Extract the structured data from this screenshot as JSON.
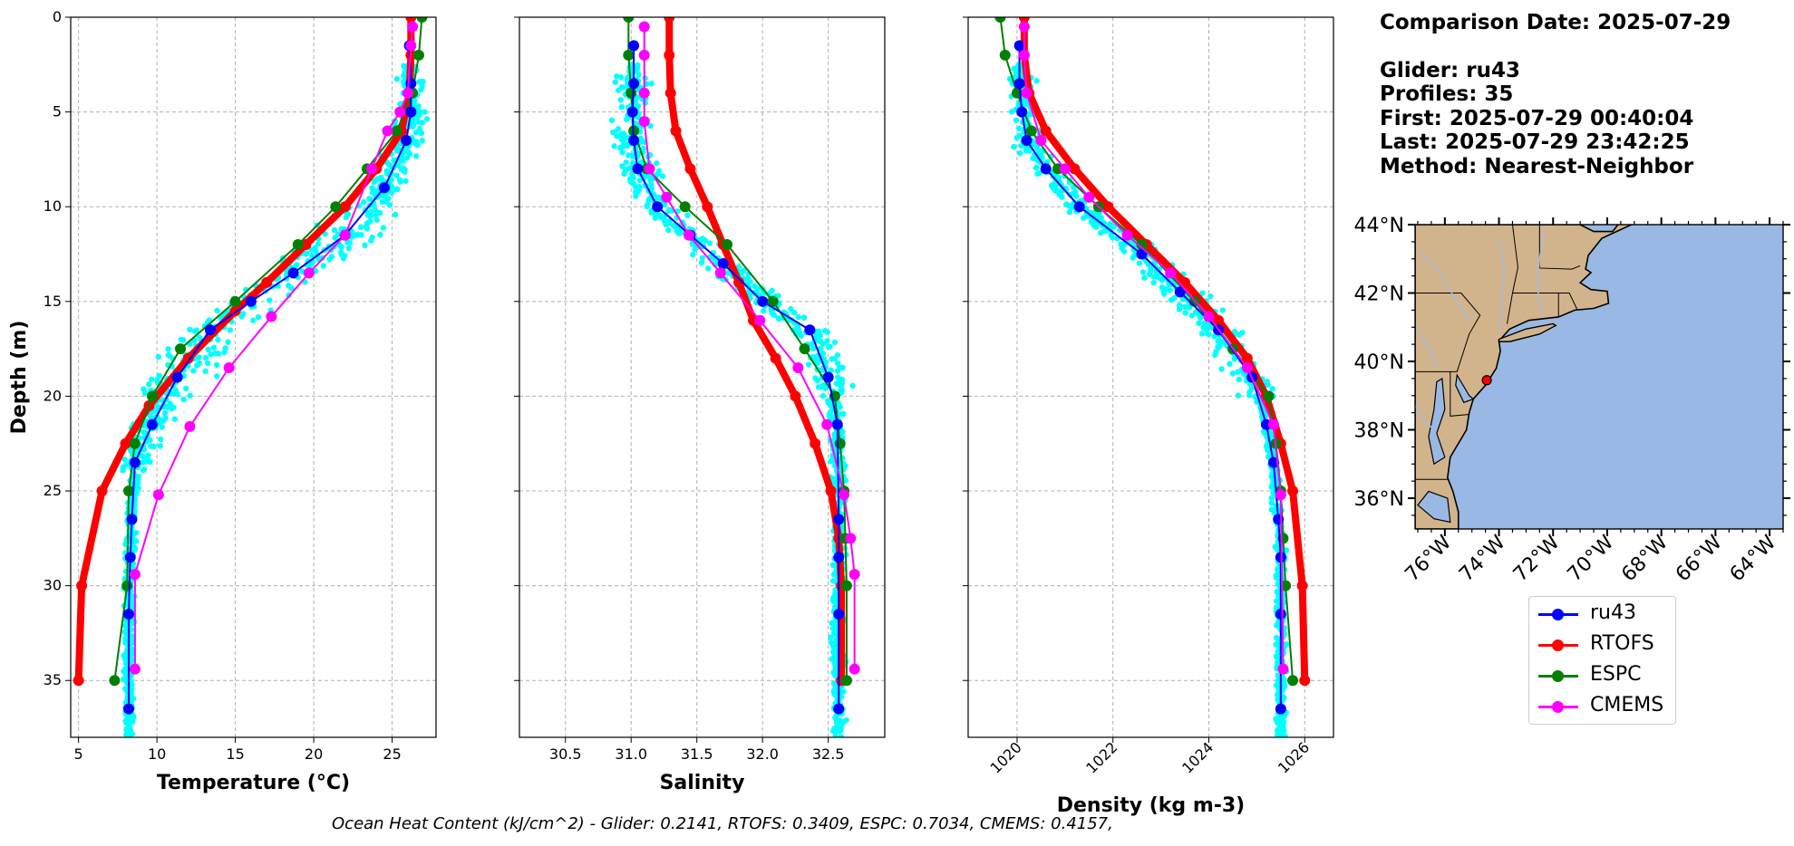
{
  "info": {
    "comparison_date": "Comparison Date: 2025-07-29",
    "glider": "Glider: ru43",
    "profiles": "Profiles: 35",
    "first": "First: 2025-07-29 00:40:04",
    "last": "Last: 2025-07-29 23:42:25",
    "method": "Method: Nearest-Neighbor"
  },
  "footer": "Ocean Heat Content (kJ/cm^2) - Glider: 0.2141,  RTOFS: 0.3409,  ESPC: 0.7034,  CMEMS: 0.4157,",
  "colors": {
    "ru43": "#0000ff",
    "RTOFS": "#ff0000",
    "ESPC": "#008000",
    "CMEMS": "#ff00ff",
    "scatter": "#00ffff",
    "land": "#d2b48c",
    "ocean": "#99b8e3",
    "river": "#a6bddb"
  },
  "legend": [
    "ru43",
    "RTOFS",
    "ESPC",
    "CMEMS"
  ],
  "chart_data": [
    {
      "type": "line",
      "xlabel": "Temperature (°C)",
      "ylabel": "Depth (m)",
      "xlim": [
        4.5,
        27.8
      ],
      "ylim": [
        38,
        0
      ],
      "xticks": [
        5,
        10,
        15,
        20,
        25
      ],
      "yticks": [
        0,
        5,
        10,
        15,
        20,
        25,
        30,
        35
      ],
      "grid": true,
      "series": [
        {
          "name": "ru43",
          "x": [
            26.1,
            26.2,
            26.2,
            25.9,
            24.5,
            22.0,
            18.7,
            16.0,
            13.4,
            11.3,
            9.7,
            8.6,
            8.4,
            8.3,
            8.2,
            8.2
          ],
          "y": [
            1.5,
            3.5,
            5,
            6.5,
            9,
            11.5,
            13.5,
            15,
            16.5,
            19,
            21.5,
            23.5,
            26.5,
            28.5,
            31.5,
            36.5
          ]
        },
        {
          "name": "RTOFS",
          "x": [
            26.2,
            26.2,
            26.1,
            25.6,
            24.0,
            22.0,
            19.5,
            17.0,
            15.0,
            12.0,
            9.5,
            8.0,
            6.5,
            5.2,
            5.0
          ],
          "y": [
            0,
            2,
            4,
            6,
            8,
            10,
            12,
            14,
            15.5,
            18,
            20.5,
            22.5,
            25,
            30,
            35
          ]
        },
        {
          "name": "ESPC",
          "x": [
            26.9,
            26.7,
            26.3,
            25.3,
            23.4,
            21.4,
            19.0,
            15.0,
            11.5,
            9.7,
            8.6,
            8.2,
            8.1,
            7.3
          ],
          "y": [
            0,
            2,
            4,
            6,
            8,
            10,
            12,
            15,
            17.5,
            20,
            22.5,
            25,
            30,
            35
          ]
        },
        {
          "name": "CMEMS",
          "x": [
            26.3,
            26.2,
            26.0,
            25.5,
            24.7,
            23.7,
            22.0,
            19.7,
            17.3,
            14.6,
            12.1,
            10.1,
            8.6,
            8.6
          ],
          "y": [
            0.5,
            1.5,
            4,
            5,
            6,
            8,
            11.5,
            13.5,
            15.8,
            18.5,
            21.6,
            25.2,
            29.4,
            34.4
          ]
        }
      ]
    },
    {
      "type": "line",
      "xlabel": "Salinity",
      "xlim": [
        30.15,
        32.93
      ],
      "ylim": [
        38,
        0
      ],
      "xticks": [
        30.5,
        31.0,
        31.5,
        32.0,
        32.5
      ],
      "grid": true,
      "series": [
        {
          "name": "ru43",
          "x": [
            31.02,
            31.02,
            31.01,
            31.02,
            31.05,
            31.2,
            31.45,
            31.7,
            32.0,
            32.36,
            32.5,
            32.57,
            32.58,
            32.58,
            32.58,
            32.58
          ],
          "y": [
            1.5,
            3.5,
            5,
            6.5,
            8,
            10,
            11.5,
            13,
            15,
            16.5,
            19,
            21.5,
            26.5,
            28.5,
            31.5,
            36.5
          ]
        },
        {
          "name": "RTOFS",
          "x": [
            31.29,
            31.29,
            31.3,
            31.34,
            31.45,
            31.58,
            31.7,
            31.82,
            31.93,
            32.1,
            32.25,
            32.4,
            32.52,
            32.58,
            32.6,
            32.6
          ],
          "y": [
            0,
            2,
            4,
            6,
            8,
            10,
            12,
            14,
            16,
            18,
            20,
            22.5,
            25,
            27.5,
            30,
            35
          ]
        },
        {
          "name": "ESPC",
          "x": [
            30.98,
            30.98,
            31.0,
            31.02,
            31.12,
            31.41,
            31.73,
            32.08,
            32.32,
            32.55,
            32.59,
            32.62,
            32.63,
            32.64,
            32.64
          ],
          "y": [
            0,
            2,
            4,
            6,
            8,
            10,
            12,
            15,
            17.5,
            20,
            22.5,
            25,
            27.5,
            30,
            35
          ]
        },
        {
          "name": "CMEMS",
          "x": [
            31.1,
            31.1,
            31.1,
            31.1,
            31.14,
            31.27,
            31.44,
            31.68,
            31.98,
            32.27,
            32.49,
            32.62,
            32.67,
            32.7,
            32.7
          ],
          "y": [
            0.5,
            2,
            4,
            5.5,
            8,
            9.5,
            11.5,
            13.5,
            16,
            18.5,
            21.5,
            25.2,
            27.5,
            29.4,
            34.4
          ]
        }
      ]
    },
    {
      "type": "line",
      "xlabel": "Density (kg m-3)",
      "xlim": [
        1018.98,
        1026.6
      ],
      "ylim": [
        38,
        0
      ],
      "xticks": [
        1020,
        1022,
        1024,
        1026
      ],
      "grid": true,
      "series": [
        {
          "name": "ru43",
          "x": [
            1020.05,
            1020.05,
            1020.1,
            1020.2,
            1020.6,
            1021.3,
            1022.6,
            1023.4,
            1024.2,
            1024.9,
            1025.2,
            1025.35,
            1025.45,
            1025.5,
            1025.5,
            1025.5
          ],
          "y": [
            1.5,
            3.5,
            5,
            6.5,
            8,
            10,
            12.5,
            14.5,
            16.5,
            19,
            21.5,
            23.5,
            26.5,
            28.5,
            31.5,
            36.5
          ]
        },
        {
          "name": "RTOFS",
          "x": [
            1020.15,
            1020.15,
            1020.25,
            1020.6,
            1021.2,
            1021.9,
            1022.7,
            1023.5,
            1024.2,
            1024.8,
            1025.2,
            1025.5,
            1025.75,
            1025.95,
            1026.0
          ],
          "y": [
            0,
            2,
            4,
            6,
            8,
            10,
            12,
            14,
            16,
            18,
            20,
            22.5,
            25,
            30,
            35
          ]
        },
        {
          "name": "ESPC",
          "x": [
            1019.65,
            1019.75,
            1020.0,
            1020.3,
            1020.85,
            1021.7,
            1022.6,
            1023.7,
            1024.5,
            1025.25,
            1025.4,
            1025.5,
            1025.55,
            1025.6,
            1025.75
          ],
          "y": [
            0,
            2,
            4,
            6,
            8,
            10,
            12,
            15,
            17.5,
            20,
            22.5,
            25,
            27.5,
            30,
            35
          ]
        },
        {
          "name": "CMEMS",
          "x": [
            1020.15,
            1020.15,
            1020.2,
            1020.5,
            1021.0,
            1021.5,
            1022.3,
            1023.2,
            1024.0,
            1024.8,
            1025.35,
            1025.5,
            1025.55
          ],
          "y": [
            0.5,
            2,
            4,
            6.5,
            8,
            9.5,
            11.5,
            13.5,
            15.8,
            18.5,
            21.5,
            25.2,
            34.4
          ]
        }
      ]
    },
    {
      "type": "map",
      "lon_range": [
        -77.1,
        -63.5
      ],
      "lat_range": [
        35.1,
        44.0
      ],
      "xticks": [
        "76°W",
        "74°W",
        "72°W",
        "70°W",
        "68°W",
        "66°W",
        "64°W"
      ],
      "yticks": [
        "44°N",
        "42°N",
        "40°N",
        "38°N",
        "36°N"
      ],
      "marker": {
        "lon": -74.45,
        "lat": 39.45
      }
    }
  ]
}
